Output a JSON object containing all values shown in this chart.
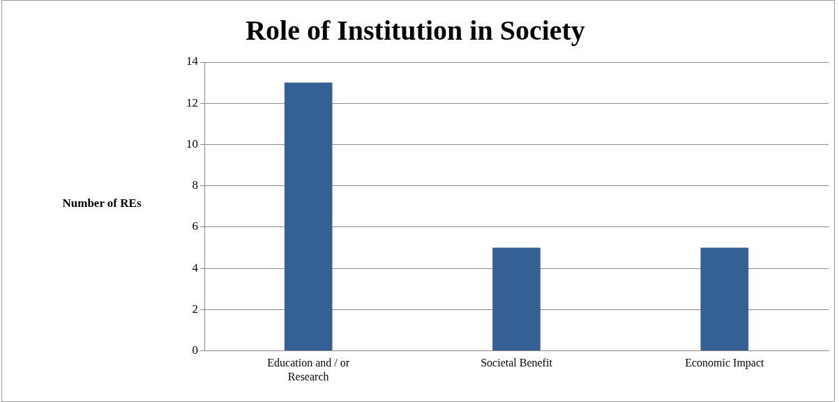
{
  "chart_data": {
    "type": "bar",
    "title": "Role of Institution in Society",
    "ylabel": "Number of REs",
    "categories": [
      "Education and / or Research",
      "Societal Benefit",
      "Economic Impact"
    ],
    "values": [
      13,
      5,
      5
    ],
    "color": "#356093",
    "ylim": [
      0,
      14
    ],
    "yticks": [
      0,
      2,
      4,
      6,
      8,
      10,
      12,
      14
    ],
    "grid": "y",
    "legend": false
  }
}
